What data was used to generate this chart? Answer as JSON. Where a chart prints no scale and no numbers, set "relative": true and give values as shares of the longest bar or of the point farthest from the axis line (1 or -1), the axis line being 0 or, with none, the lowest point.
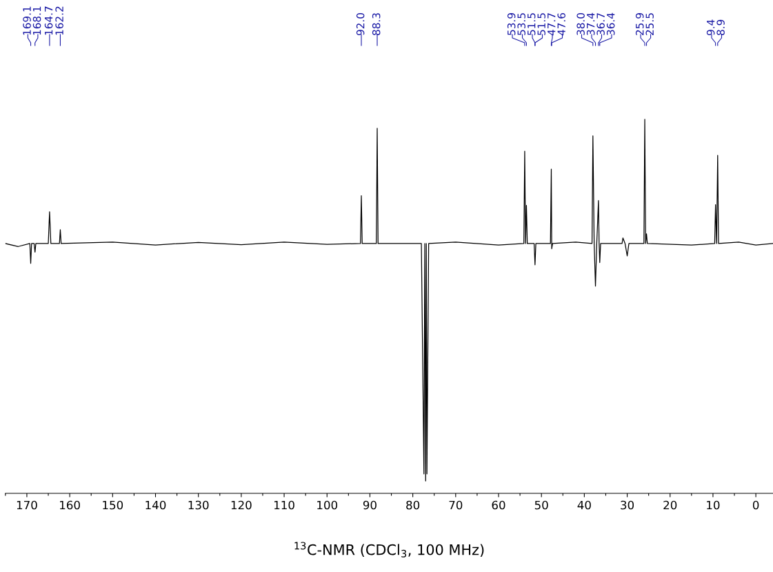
{
  "chart_data": {
    "type": "line",
    "relative": true,
    "xlabel": "$^{13}$C-NMR (CDCl$_{3}$, 100 MHz)",
    "xlim": [
      175,
      -4
    ],
    "xticks": [
      {
        "value": 175,
        "label": null
      },
      170,
      {
        "value": 165,
        "label": null
      },
      160,
      {
        "value": 155,
        "label": null
      },
      150,
      {
        "value": 145,
        "label": null
      },
      140,
      {
        "value": 135,
        "label": null
      },
      130,
      {
        "value": 125,
        "label": null
      },
      120,
      {
        "value": 115,
        "label": null
      },
      110,
      {
        "value": 105,
        "label": null
      },
      100,
      {
        "value": 95,
        "label": null
      },
      90,
      {
        "value": 85,
        "label": null
      },
      80,
      {
        "value": 75,
        "label": null
      },
      70,
      {
        "value": 65,
        "label": null
      },
      60,
      {
        "value": 55,
        "label": null
      },
      50,
      {
        "value": 45,
        "label": null
      },
      40,
      {
        "value": 35,
        "label": null
      },
      30,
      {
        "value": 25,
        "label": null
      },
      20,
      {
        "value": 15,
        "label": null
      },
      10,
      {
        "value": 5,
        "label": null
      },
      0
    ],
    "grid": false,
    "legend": false,
    "tick_labels": "x",
    "series": [
      {
        "color": "#000000",
        "x": [
          175,
          172,
          169.3,
          169.1,
          168.9,
          168.3,
          168.1,
          167.9,
          165.0,
          164.7,
          164.4,
          162.4,
          162.2,
          162.0,
          150,
          140,
          130,
          120,
          110,
          100,
          92.2,
          92.0,
          91.8,
          88.5,
          88.3,
          88.1,
          82,
          78.0,
          77.4,
          77.2,
          77.0,
          76.85,
          76.7,
          76.3,
          70,
          60,
          54.1,
          53.9,
          53.7,
          53.5,
          53.3,
          51.7,
          51.5,
          51.3,
          47.9,
          47.7,
          47.6,
          47.4,
          42,
          38.2,
          38.0,
          37.7,
          37.4,
          37.1,
          36.7,
          36.55,
          36.4,
          36.2,
          31.2,
          31.0,
          30.5,
          30.0,
          29.6,
          26.1,
          25.9,
          25.7,
          25.5,
          25.3,
          15,
          9.6,
          9.4,
          9.15,
          8.9,
          8.7,
          4,
          0,
          -4
        ],
        "values": [
          0.668,
          0.66,
          0.668,
          0.615,
          0.668,
          0.668,
          0.645,
          0.668,
          0.668,
          0.753,
          0.668,
          0.668,
          0.705,
          0.668,
          0.672,
          0.664,
          0.671,
          0.665,
          0.672,
          0.666,
          0.668,
          0.796,
          0.668,
          0.668,
          0.976,
          0.668,
          0.668,
          0.668,
          0.052,
          0.668,
          0.033,
          0.668,
          0.052,
          0.668,
          0.672,
          0.664,
          0.668,
          0.915,
          0.668,
          0.77,
          0.668,
          0.668,
          0.611,
          0.668,
          0.668,
          0.867,
          0.654,
          0.668,
          0.672,
          0.668,
          0.956,
          0.668,
          0.554,
          0.668,
          0.783,
          0.668,
          0.617,
          0.668,
          0.668,
          0.683,
          0.668,
          0.635,
          0.668,
          0.668,
          1,
          0.668,
          0.694,
          0.668,
          0.664,
          0.668,
          0.772,
          0.668,
          0.904,
          0.668,
          0.672,
          0.664,
          0.668
        ]
      }
    ],
    "annotations": [
      {
        "text": "169.1",
        "x": 169.1
      },
      {
        "text": "168.1",
        "x": 168.1
      },
      {
        "text": "164.7",
        "x": 164.7
      },
      {
        "text": "162.2",
        "x": 162.2
      },
      {
        "text": "92.0",
        "x": 92.0
      },
      {
        "text": "88.3",
        "x": 88.3
      },
      {
        "text": "53.9",
        "x": 53.9
      },
      {
        "text": "53.5",
        "x": 53.5
      },
      {
        "text": "51.5",
        "x": 51.5
      },
      {
        "text": "51.5",
        "x": 51.5
      },
      {
        "text": "47.7",
        "x": 47.7
      },
      {
        "text": "47.6",
        "x": 47.6
      },
      {
        "text": "38.0",
        "x": 38.0
      },
      {
        "text": "37.4",
        "x": 37.4
      },
      {
        "text": "36.7",
        "x": 36.7
      },
      {
        "text": "36.4",
        "x": 36.4
      },
      {
        "text": "25.9",
        "x": 25.9
      },
      {
        "text": "25.5",
        "x": 25.5
      },
      {
        "text": "9.4",
        "x": 9.4
      },
      {
        "text": "8.9",
        "x": 8.9
      }
    ]
  }
}
